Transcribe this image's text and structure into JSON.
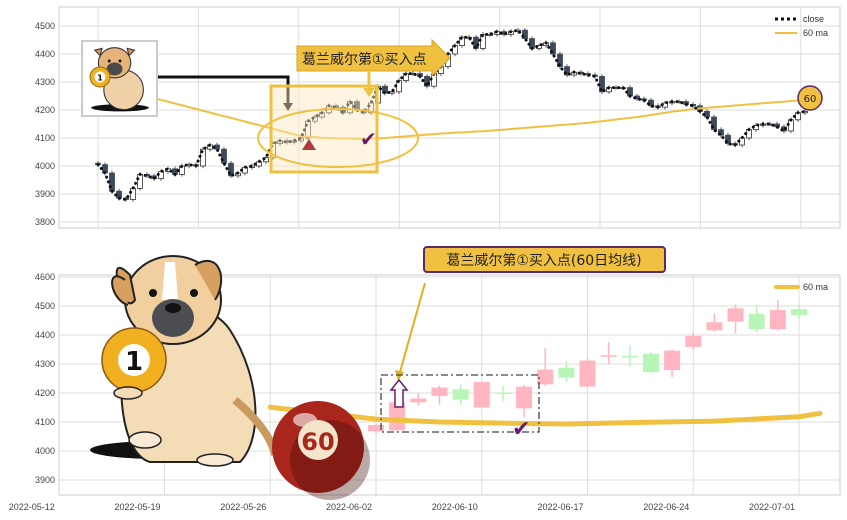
{
  "colors": {
    "accent": "#f0c040",
    "annotation_border": "#5a2a6a",
    "down_candle_top": "#3d4a5c",
    "up_candle_bottom": "#ffb6c1",
    "down_candle_bottom": "#b8f5b8",
    "ball_red": "#a8261c",
    "triangle_red": "#b03a3a",
    "check_purple": "#6a1a6a"
  },
  "icons": [
    "dog-illustration",
    "billiard-ball-1",
    "billiard-ball-60",
    "check-mark-icon",
    "triangle-up-icon",
    "hollow-up-arrow-icon"
  ],
  "chart_data": [
    {
      "type": "candlestick",
      "title": "",
      "ylim": [
        3780,
        4570
      ],
      "yticks": [
        3800,
        3900,
        4000,
        4100,
        4200,
        4300,
        4400,
        4500
      ],
      "grid": true,
      "legend": {
        "placement": "top-right",
        "entries": [
          "close",
          "60 ma"
        ]
      },
      "series": [
        {
          "name": "close",
          "style": "dotted",
          "values": [
            4005,
            3975,
            3910,
            3885,
            3880,
            3920,
            3970,
            3965,
            3955,
            3980,
            3990,
            3970,
            4000,
            4005,
            4000,
            4060,
            4075,
            4060,
            4010,
            3965,
            3975,
            3995,
            4000,
            4015,
            4030,
            4080,
            4090,
            4085,
            4090,
            4100,
            4160,
            4175,
            4190,
            4215,
            4210,
            4190,
            4230,
            4200,
            4190,
            4225,
            4285,
            4260,
            4265,
            4305,
            4330,
            4330,
            4320,
            4285,
            4330,
            4355,
            4400,
            4430,
            4460,
            4460,
            4420,
            4470,
            4470,
            4480,
            4470,
            4480,
            4485,
            4455,
            4420,
            4430,
            4440,
            4400,
            4355,
            4325,
            4335,
            4330,
            4325,
            4320,
            4265,
            4280,
            4280,
            4280,
            4250,
            4240,
            4235,
            4215,
            4210,
            4225,
            4230,
            4230,
            4220,
            4215,
            4195,
            4175,
            4130,
            4110,
            4080,
            4075,
            4100,
            4130,
            4145,
            4150,
            4150,
            4140,
            4125,
            4165,
            4190,
            4195
          ]
        },
        {
          "name": "60 ma",
          "values": [
            null,
            null,
            null,
            null,
            null,
            null,
            null,
            null,
            4243,
            4236,
            4230,
            4223,
            4217,
            4210,
            4204,
            4197,
            4191,
            4184,
            4178,
            4172,
            4165,
            4159,
            4152,
            4146,
            4139,
            4133,
            4126,
            4120,
            4113,
            4107,
            4105,
            4103,
            4101,
            4100,
            4099,
            4098,
            4098,
            4097,
            4097,
            4098,
            4099,
            4100,
            4102,
            4104,
            4106,
            4108,
            4110,
            4112,
            4114,
            4116,
            4117,
            4119,
            4120,
            4121,
            4123,
            4124,
            4126,
            4128,
            4130,
            4132,
            4134,
            4136,
            4138,
            4140,
            4142,
            4144,
            4146,
            4148,
            4150,
            4152,
            4154,
            4157,
            4160,
            4163,
            4166,
            4169,
            4172,
            4175,
            4178,
            4182,
            4186,
            4190,
            4194,
            4197,
            4200,
            4203,
            4206,
            4208,
            4210,
            4212,
            4214,
            4216,
            4218,
            4220,
            4222,
            4224,
            4226,
            4228,
            4230,
            4232,
            4234,
            4236
          ]
        }
      ],
      "annotations": {
        "buy_point_label": "葛兰威尔第①买入点",
        "ma_badge": "60",
        "ball_label": "1"
      }
    },
    {
      "type": "candlestick",
      "title": "",
      "ylim": [
        3850,
        4610
      ],
      "yticks": [
        3900,
        4000,
        4100,
        4200,
        4300,
        4400,
        4500,
        4600
      ],
      "grid": true,
      "xticks": [
        "2022-05-12",
        "2022-05-19",
        "2022-05-26",
        "2022-06-02",
        "2022-06-10",
        "2022-06-17",
        "2022-06-24",
        "2022-07-01"
      ],
      "legend": {
        "placement": "top-right",
        "entries": [
          "60 ma"
        ]
      },
      "candles": [
        {
          "date": "2022-06-02",
          "open": 4068,
          "close": 4090,
          "high": 4095,
          "low": 4060
        },
        {
          "date": "2022-06-06",
          "open": 4071,
          "close": 4168,
          "high": 4170,
          "low": 4068
        },
        {
          "date": "2022-06-07",
          "open": 4168,
          "close": 4181,
          "high": 4200,
          "low": 4158
        },
        {
          "date": "2022-06-08",
          "open": 4190,
          "close": 4219,
          "high": 4226,
          "low": 4160
        },
        {
          "date": "2022-06-09",
          "open": 4213,
          "close": 4177,
          "high": 4230,
          "low": 4160
        },
        {
          "date": "2022-06-10",
          "open": 4150,
          "close": 4238,
          "high": 4240,
          "low": 4148
        },
        {
          "date": "2022-06-13",
          "open": 4202,
          "close": 4200,
          "high": 4225,
          "low": 4170
        },
        {
          "date": "2022-06-14",
          "open": 4147,
          "close": 4222,
          "high": 4228,
          "low": 4115
        },
        {
          "date": "2022-06-15",
          "open": 4230,
          "close": 4281,
          "high": 4355,
          "low": 4225
        },
        {
          "date": "2022-06-16",
          "open": 4287,
          "close": 4253,
          "high": 4310,
          "low": 4240
        },
        {
          "date": "2022-06-17",
          "open": 4222,
          "close": 4312,
          "high": 4320,
          "low": 4220
        },
        {
          "date": "2022-06-20",
          "open": 4328,
          "close": 4330,
          "high": 4375,
          "low": 4300
        },
        {
          "date": "2022-06-21",
          "open": 4328,
          "close": 4326,
          "high": 4365,
          "low": 4290
        },
        {
          "date": "2022-06-22",
          "open": 4335,
          "close": 4272,
          "high": 4340,
          "low": 4268
        },
        {
          "date": "2022-06-23",
          "open": 4279,
          "close": 4346,
          "high": 4350,
          "low": 4255
        },
        {
          "date": "2022-06-24",
          "open": 4359,
          "close": 4397,
          "high": 4410,
          "low": 4350
        },
        {
          "date": "2022-06-27",
          "open": 4416,
          "close": 4444,
          "high": 4475,
          "low": 4412
        },
        {
          "date": "2022-06-28",
          "open": 4446,
          "close": 4492,
          "high": 4505,
          "low": 4405
        },
        {
          "date": "2022-06-29",
          "open": 4473,
          "close": 4420,
          "high": 4505,
          "low": 4410
        },
        {
          "date": "2022-06-30",
          "open": 4420,
          "close": 4486,
          "high": 4520,
          "low": 4415
        },
        {
          "date": "2022-07-01",
          "open": 4489,
          "close": 4469,
          "high": 4505,
          "low": 4455
        }
      ],
      "series": [
        {
          "name": "60 ma",
          "values": [
            [
              -5,
              4151
            ],
            [
              -3,
              4135
            ],
            [
              0,
              4110
            ],
            [
              3,
              4100
            ],
            [
              6,
              4096
            ],
            [
              9,
              4093
            ],
            [
              12,
              4098
            ],
            [
              16,
              4103
            ],
            [
              20,
              4118
            ],
            [
              21,
              4130
            ]
          ]
        }
      ],
      "annotations": {
        "buy_point_label": "葛兰威尔第①买入点(60日均线)",
        "ball_1": "1",
        "ball_60": "60"
      }
    }
  ]
}
